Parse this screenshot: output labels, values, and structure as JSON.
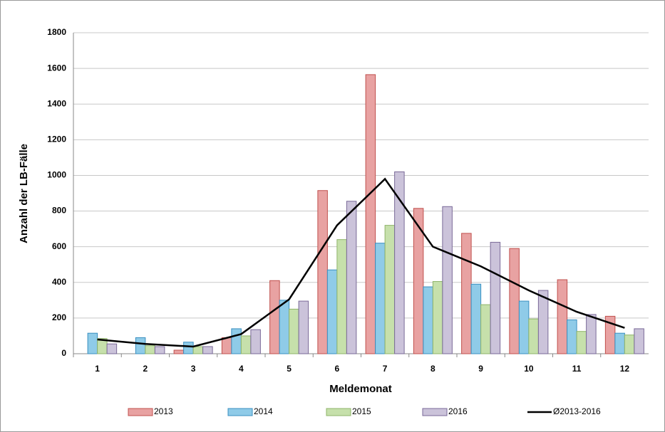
{
  "chart_data": {
    "type": "bar",
    "x_label": "Meldemonat",
    "y_label": "Anzahl der LB-Fälle",
    "categories": [
      "1",
      "2",
      "3",
      "4",
      "5",
      "6",
      "7",
      "8",
      "9",
      "10",
      "11",
      "12"
    ],
    "series": [
      {
        "name": "2013",
        "type": "bar",
        "color": "#e8a2a2",
        "edge": "#c0504d",
        "values": [
          0,
          0,
          20,
          90,
          410,
          915,
          1565,
          815,
          675,
          590,
          415,
          210
        ]
      },
      {
        "name": "2014",
        "type": "bar",
        "color": "#8fcbe8",
        "edge": "#3a8fc0",
        "values": [
          115,
          90,
          65,
          140,
          300,
          470,
          620,
          375,
          390,
          295,
          190,
          115
        ]
      },
      {
        "name": "2015",
        "type": "bar",
        "color": "#c6e0ab",
        "edge": "#8fb46a",
        "values": [
          85,
          45,
          40,
          100,
          250,
          640,
          720,
          405,
          275,
          195,
          125,
          105
        ]
      },
      {
        "name": "2016",
        "type": "bar",
        "color": "#cbc3da",
        "edge": "#7a6a98",
        "values": [
          55,
          40,
          40,
          135,
          295,
          855,
          1020,
          825,
          625,
          355,
          220,
          140
        ]
      },
      {
        "name": "Ø2013-2016",
        "type": "line",
        "color": "#000000",
        "values": [
          80,
          55,
          40,
          110,
          305,
          720,
          980,
          600,
          490,
          355,
          235,
          145
        ]
      }
    ],
    "ylim": [
      0,
      1800
    ],
    "yticks": [
      0,
      200,
      400,
      600,
      800,
      1000,
      1200,
      1400,
      1600,
      1800
    ],
    "grid": true
  }
}
